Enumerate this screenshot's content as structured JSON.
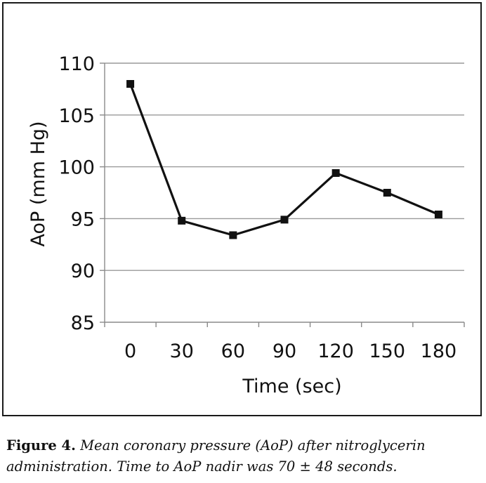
{
  "chart_data": {
    "type": "line",
    "title": "",
    "xlabel": "Time (sec)",
    "ylabel": "AoP (mm Hg)",
    "categories": [
      "0",
      "30",
      "60",
      "90",
      "120",
      "150",
      "180"
    ],
    "x": [
      0,
      30,
      60,
      90,
      120,
      150,
      180
    ],
    "series": [
      {
        "name": "AoP",
        "values": [
          108,
          94.8,
          93.4,
          94.9,
          99.4,
          97.5,
          95.4
        ]
      }
    ],
    "ylim": [
      85,
      110
    ],
    "yticks": [
      85,
      90,
      95,
      100,
      105,
      110
    ],
    "ytick_labels": [
      "85",
      "90",
      "95",
      "100",
      "105",
      "110"
    ],
    "grid": true,
    "marker": "square",
    "line_color": "#111111"
  },
  "caption": {
    "label": "Figure 4.",
    "text": "Mean coronary pressure (AoP) after nitroglycerin administration. Time to AoP nadir was 70 ± 48 seconds."
  }
}
